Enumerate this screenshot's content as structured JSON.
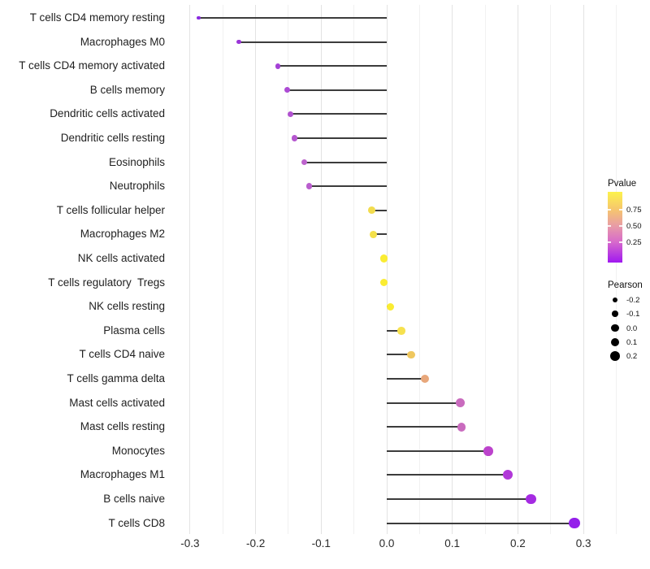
{
  "chart_data": {
    "type": "lollipop",
    "orientation": "horizontal",
    "title": "",
    "xlabel": "",
    "ylabel": "",
    "grid": "light vertical gridlines every 0.05, white background",
    "xlim": [
      -0.33,
      0.37
    ],
    "x_tick_values": [
      -0.3,
      -0.2,
      -0.1,
      0.0,
      0.1,
      0.2,
      0.3
    ],
    "x_tick_labels": [
      "-0.3",
      "-0.2",
      "-0.1",
      "0.0",
      "0.1",
      "0.2",
      "0.3"
    ],
    "categories": [
      "T cells CD4 memory resting",
      "Macrophages M0",
      "T cells CD4 memory activated",
      "B cells memory",
      "Dendritic cells activated",
      "Dendritic cells resting",
      "Eosinophils",
      "Neutrophils",
      "T cells follicular helper",
      "Macrophages M2",
      "NK cells activated",
      "T cells regulatory  Tregs",
      "NK cells resting",
      "Plasma cells",
      "T cells CD4 naive",
      "T cells gamma delta",
      "Mast cells activated",
      "Mast cells resting",
      "Monocytes",
      "Macrophages M1",
      "B cells naive",
      "T cells CD8"
    ],
    "series": [
      {
        "name": "Pearson",
        "values": [
          -0.287,
          -0.226,
          -0.166,
          -0.152,
          -0.147,
          -0.141,
          -0.126,
          -0.118,
          -0.023,
          -0.02,
          -0.004,
          -0.004,
          0.006,
          0.022,
          0.037,
          0.058,
          0.112,
          0.114,
          0.155,
          0.185,
          0.22,
          0.286
        ]
      }
    ],
    "point_colors": [
      "#8A2BE0",
      "#9A35D8",
      "#A441D6",
      "#AC4BD4",
      "#B152D0",
      "#B557CF",
      "#BD63CD",
      "#BA5ECE",
      "#F2DC4E",
      "#F4E04A",
      "#FAEC32",
      "#FAEC32",
      "#FAEC32",
      "#F6E14E",
      "#EFC75E",
      "#E8A77B",
      "#C96BBE",
      "#C96BBE",
      "#BC43CC",
      "#B138D8",
      "#A52BE2",
      "#941FEA"
    ],
    "segment_color": "#3c3c3c",
    "legend_pvalue": {
      "title": "Pvalue",
      "tick_labels": [
        "0.75",
        "0.50",
        "0.25"
      ],
      "tick_values": [
        0.75,
        0.5,
        0.25
      ],
      "gradient_top_to_bottom": [
        "#FCF24C",
        "#F6C66E",
        "#E89CA6",
        "#D76ACB",
        "#A018F0"
      ]
    },
    "legend_pearson": {
      "title": "Pearson",
      "tick_labels": [
        "-0.2",
        "-0.1",
        "0.0",
        "0.1",
        "0.2"
      ],
      "tick_values": [
        -0.2,
        -0.1,
        0.0,
        0.1,
        0.2
      ]
    }
  }
}
